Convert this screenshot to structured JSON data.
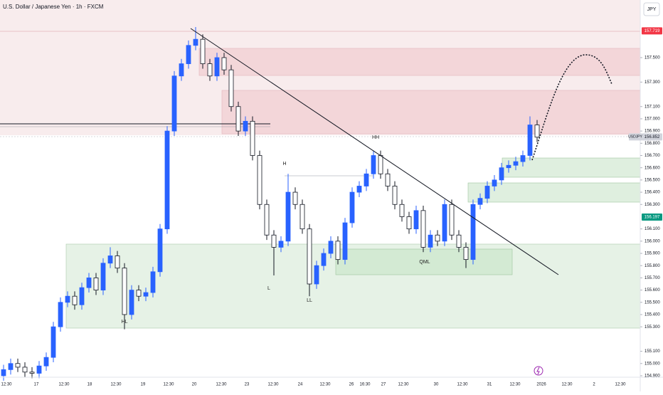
{
  "chart_data": {
    "type": "candlestick",
    "title": "U.S. Dollar / Japanese Yen · 1h · FXCM",
    "currency": "JPY",
    "symbol": "USDJPY",
    "up_color": "#2962ff",
    "down_color": "#131722",
    "ylim": [
      154.888,
      157.971
    ],
    "yticks": [
      {
        "value": 154.9,
        "label": "154.900"
      },
      {
        "value": 155.0,
        "label": "155.000"
      },
      {
        "value": 155.1,
        "label": "155.100"
      },
      {
        "value": 155.3,
        "label": "155.300"
      },
      {
        "value": 155.4,
        "label": "155.400"
      },
      {
        "value": 155.5,
        "label": "155.500"
      },
      {
        "value": 155.6,
        "label": "155.600"
      },
      {
        "value": 155.7,
        "label": "155.700"
      },
      {
        "value": 155.8,
        "label": "155.800"
      },
      {
        "value": 155.9,
        "label": "155.900"
      },
      {
        "value": 156.0,
        "label": "156.000"
      },
      {
        "value": 156.1,
        "label": "156.100"
      },
      {
        "value": 156.3,
        "label": "156.300"
      },
      {
        "value": 156.4,
        "label": "156.400"
      },
      {
        "value": 156.5,
        "label": "156.500"
      },
      {
        "value": 156.6,
        "label": "156.600"
      },
      {
        "value": 156.7,
        "label": "156.700"
      },
      {
        "value": 156.8,
        "label": "156.800"
      },
      {
        "value": 156.9,
        "label": "156.900"
      },
      {
        "value": 157.0,
        "label": "157.000"
      },
      {
        "value": 157.1,
        "label": "157.100"
      },
      {
        "value": 157.3,
        "label": "157.300"
      },
      {
        "value": 157.5,
        "label": "157.500"
      }
    ],
    "x_labels": [
      "12:30",
      "17",
      "12:30",
      "18",
      "12:30",
      "19",
      "12:30",
      "20",
      "12:30",
      "23",
      "12:30",
      "24",
      "12:30",
      "26",
      "16:30",
      "27",
      "12:30",
      "30",
      "12:30",
      "31",
      "12:30",
      "2026",
      "12:30",
      "2",
      "12:30"
    ],
    "price_tags": [
      {
        "value": 157.719,
        "label": "157.719",
        "color": "#f23645"
      },
      {
        "value": 156.852,
        "label": "156.852",
        "color": "#d1d4dc"
      },
      {
        "value": 156.197,
        "label": "156.197",
        "color": "#089981"
      }
    ],
    "annotations": [
      "HH",
      "H",
      "L",
      "LL",
      "HL",
      "QML"
    ],
    "open": [
      154.9,
      154.95,
      155.0,
      154.97,
      154.93,
      154.92,
      154.98,
      155.05,
      155.3,
      155.5,
      155.55,
      155.48,
      155.62,
      155.7,
      155.6,
      155.82,
      155.88,
      155.78,
      155.4,
      155.6,
      155.55,
      155.58,
      155.75,
      156.1,
      156.9,
      157.35,
      157.45,
      157.6,
      157.65,
      157.45,
      157.35,
      157.5,
      157.4,
      157.1,
      156.9,
      156.98,
      156.7,
      156.3,
      156.05,
      155.95,
      156.0,
      156.4,
      156.3,
      156.1,
      155.65,
      155.8,
      155.9,
      156.0,
      155.85,
      156.15,
      156.4,
      156.45,
      156.55,
      156.7,
      156.55,
      156.45,
      156.3,
      156.2,
      156.1,
      156.25,
      155.95,
      156.05,
      156.0,
      156.3,
      156.05,
      155.95,
      155.85,
      156.3,
      156.35,
      156.45,
      156.5,
      156.6,
      156.62,
      156.65,
      156.7,
      156.95
    ],
    "high": [
      154.99,
      155.04,
      155.04,
      155.01,
      154.97,
      155.02,
      155.09,
      155.34,
      155.54,
      155.59,
      155.59,
      155.66,
      155.74,
      155.74,
      155.86,
      155.95,
      155.92,
      155.82,
      155.64,
      155.64,
      155.62,
      155.79,
      156.14,
      156.94,
      157.39,
      157.49,
      157.64,
      157.75,
      157.69,
      157.49,
      157.54,
      157.54,
      157.44,
      157.14,
      157.02,
      157.02,
      156.74,
      156.34,
      156.09,
      156.04,
      156.55,
      156.44,
      156.34,
      156.14,
      155.84,
      155.94,
      156.04,
      156.04,
      156.19,
      156.44,
      156.49,
      156.59,
      156.74,
      156.74,
      156.59,
      156.49,
      156.34,
      156.24,
      156.29,
      156.29,
      156.09,
      156.09,
      156.34,
      156.34,
      156.09,
      155.99,
      156.34,
      156.39,
      156.49,
      156.54,
      156.64,
      156.66,
      156.69,
      156.74,
      157.02,
      156.99
    ],
    "low": [
      154.86,
      154.91,
      154.93,
      154.89,
      154.88,
      154.88,
      154.94,
      155.01,
      155.26,
      155.46,
      155.44,
      155.44,
      155.58,
      155.56,
      155.56,
      155.78,
      155.74,
      155.28,
      155.36,
      155.51,
      155.51,
      155.54,
      155.71,
      156.06,
      156.86,
      157.31,
      157.41,
      157.56,
      157.41,
      157.31,
      157.31,
      157.36,
      157.06,
      156.86,
      156.86,
      156.66,
      156.26,
      156.01,
      155.72,
      155.91,
      155.96,
      156.26,
      156.06,
      155.55,
      155.61,
      155.76,
      155.86,
      155.81,
      155.81,
      156.11,
      156.36,
      156.41,
      156.51,
      156.51,
      156.41,
      156.26,
      156.16,
      156.06,
      156.06,
      155.91,
      155.91,
      155.96,
      155.96,
      156.01,
      155.91,
      155.78,
      155.81,
      156.26,
      156.31,
      156.41,
      156.46,
      156.56,
      156.58,
      156.61,
      156.66,
      156.81
    ],
    "close": [
      154.95,
      155.0,
      154.97,
      154.93,
      154.92,
      154.98,
      155.05,
      155.3,
      155.5,
      155.55,
      155.48,
      155.62,
      155.7,
      155.6,
      155.82,
      155.88,
      155.78,
      155.4,
      155.6,
      155.55,
      155.58,
      155.75,
      156.1,
      156.9,
      157.35,
      157.45,
      157.6,
      157.65,
      157.45,
      157.35,
      157.5,
      157.4,
      157.1,
      156.9,
      156.98,
      156.7,
      156.3,
      156.05,
      155.95,
      156.0,
      156.4,
      156.3,
      156.1,
      155.65,
      155.8,
      155.9,
      156.0,
      155.85,
      156.15,
      156.4,
      156.45,
      156.55,
      156.7,
      156.55,
      156.45,
      156.3,
      156.2,
      156.1,
      156.25,
      155.95,
      156.05,
      156.0,
      156.3,
      156.05,
      155.95,
      155.85,
      156.3,
      156.35,
      156.45,
      156.5,
      156.6,
      156.62,
      156.65,
      156.7,
      156.95,
      156.85
    ]
  }
}
